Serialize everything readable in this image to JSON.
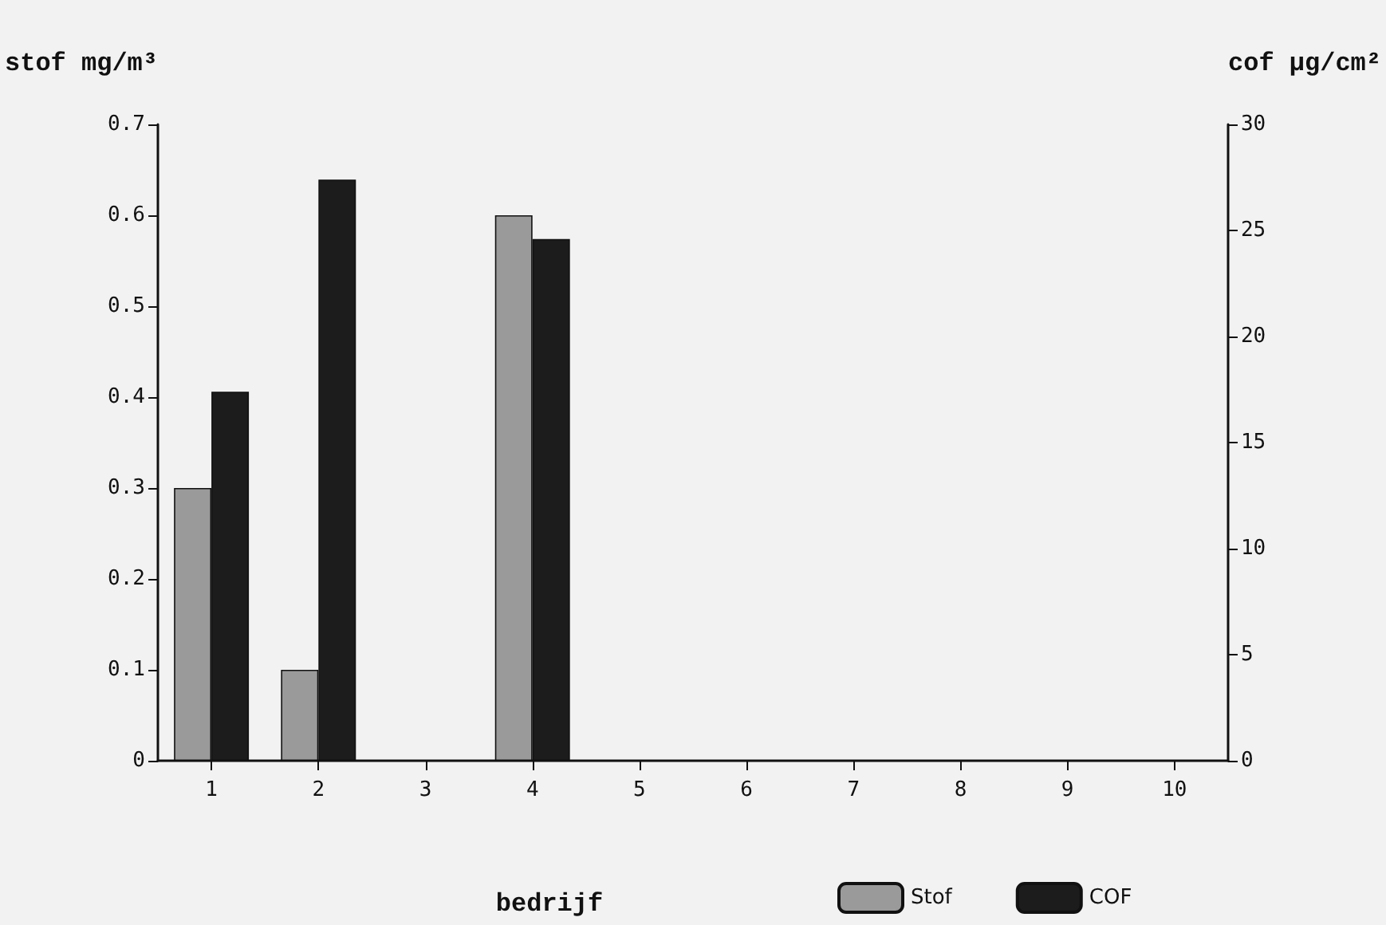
{
  "chart_data": {
    "type": "bar",
    "categories": [
      "1",
      "2",
      "3",
      "4",
      "5",
      "6",
      "7",
      "8",
      "9",
      "10"
    ],
    "xlabel": "bedrijf",
    "ylabel": "stof mg/m³",
    "y2label": "cof μg/cm²",
    "series": [
      {
        "name": "Stof",
        "color": "#9a9a9a",
        "values": [
          0.3,
          0.1,
          null,
          0.6,
          null,
          null,
          null,
          null,
          null,
          null
        ]
      },
      {
        "name": "COF",
        "color": "#1c1c1c",
        "axis": "y2",
        "values": [
          17.4,
          27.4,
          null,
          24.6,
          null,
          null,
          null,
          null,
          null,
          null
        ]
      }
    ],
    "ylim": [
      0,
      0.7
    ],
    "yticks": [
      {
        "value": 0,
        "label": "0"
      },
      {
        "value": 0.1,
        "label": "0.1"
      },
      {
        "value": 0.2,
        "label": "0.2"
      },
      {
        "value": 0.3,
        "label": "0.3"
      },
      {
        "value": 0.4,
        "label": "0.4"
      },
      {
        "value": 0.5,
        "label": "0.5"
      },
      {
        "value": 0.6,
        "label": "0.6"
      },
      {
        "value": 0.7,
        "label": "0.7"
      }
    ],
    "y2lim": [
      0,
      30
    ],
    "y2ticks": [
      0,
      5,
      10,
      15,
      20,
      25,
      30
    ],
    "grid": false,
    "legend": "bottom right"
  }
}
